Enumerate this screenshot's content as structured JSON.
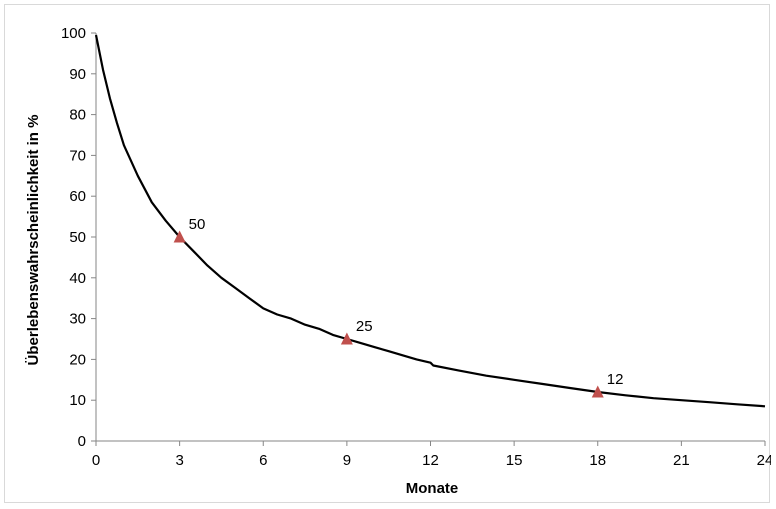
{
  "chart_data": {
    "type": "line",
    "title": "",
    "xlabel": "Monate",
    "ylabel": "Überlebenswahrscheinlichkeit in %",
    "xlim": [
      0,
      24
    ],
    "ylim": [
      0,
      100
    ],
    "x_ticks": [
      0,
      3,
      6,
      9,
      12,
      15,
      18,
      21,
      24
    ],
    "y_ticks": [
      0,
      10,
      20,
      30,
      40,
      50,
      60,
      70,
      80,
      90,
      100
    ],
    "grid": false,
    "legend": "none",
    "series": [
      {
        "color": "#000000",
        "x": [
          0,
          0.25,
          0.5,
          0.75,
          1,
          1.5,
          2,
          2.5,
          3,
          3.5,
          4,
          4.5,
          5,
          5.5,
          6,
          6.5,
          7,
          7.5,
          8,
          8.5,
          9,
          9.5,
          10,
          10.5,
          11,
          11.5,
          12,
          12.1,
          13,
          14,
          15,
          16,
          17,
          18,
          19,
          20,
          21,
          22,
          23,
          24
        ],
        "y": [
          99.5,
          91,
          84,
          78,
          72.5,
          65,
          58.5,
          54,
          50,
          46.5,
          43,
          40,
          37.5,
          35,
          32.5,
          31,
          30,
          28.5,
          27.5,
          26,
          25,
          24,
          23,
          22,
          21,
          20,
          19.2,
          18.5,
          17.3,
          16,
          15,
          14,
          13,
          12,
          11.2,
          10.5,
          10,
          9.5,
          9,
          8.5
        ]
      }
    ],
    "markers": [
      {
        "x": 3,
        "y": 50,
        "label": "50"
      },
      {
        "x": 9,
        "y": 25,
        "label": "25"
      },
      {
        "x": 18,
        "y": 12,
        "label": "12"
      }
    ],
    "marker_color": "#c0504d",
    "axis_color": "#868686"
  }
}
